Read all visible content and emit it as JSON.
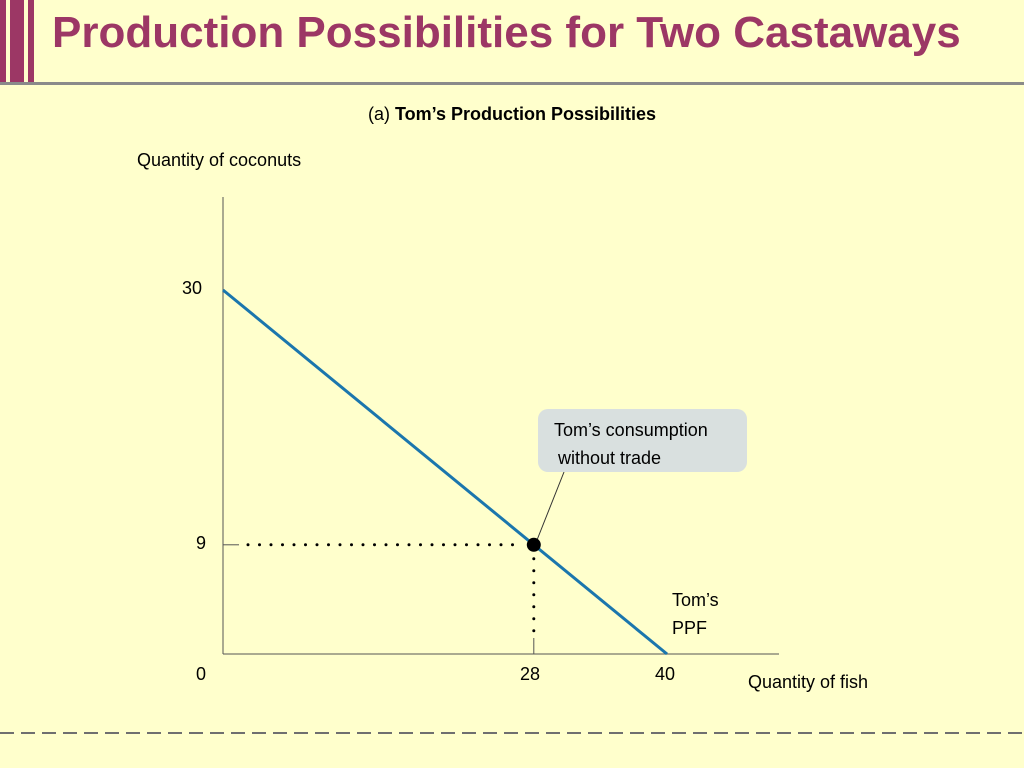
{
  "slide": {
    "title": "Production Possibilities for Two Castaways",
    "panel_prefix": "(a) ",
    "panel_title": "Tom’s Production Possibilities"
  },
  "colors": {
    "title": "#9c3765",
    "background": "#ffffcc",
    "ppf_line": "#1b76ad",
    "callout_fill": "#d9e0df"
  },
  "chart_data": {
    "type": "line",
    "title": "Tom’s Production Possibilities",
    "xlabel": "Quantity of fish",
    "ylabel": "Quantity of coconuts",
    "x_ticks": [
      "0",
      "28",
      "40"
    ],
    "y_ticks": [
      "30",
      "9"
    ],
    "xlim": [
      0,
      40
    ],
    "ylim": [
      0,
      30
    ],
    "series": [
      {
        "name": "Tom’s PPF",
        "x": [
          0,
          40
        ],
        "y": [
          30,
          0
        ]
      }
    ],
    "point": {
      "x": 28,
      "y": 9
    },
    "annotation": {
      "line1": "Tom’s consumption",
      "line2": "without trade"
    },
    "ppf_label": {
      "line1": "Tom’s",
      "line2": "PPF"
    }
  }
}
